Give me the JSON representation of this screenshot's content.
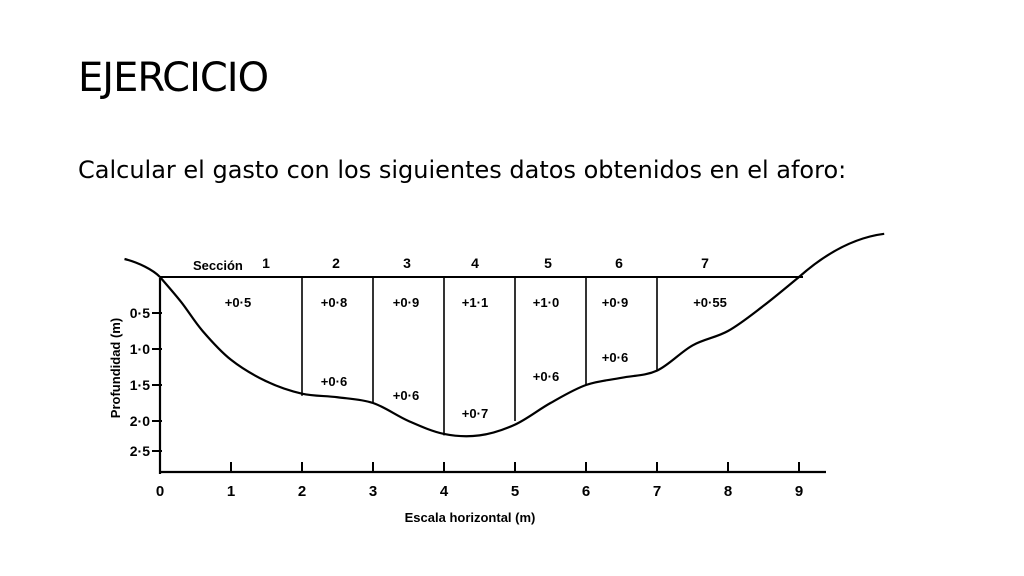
{
  "slide": {
    "title": "EJERCICIO",
    "body": "Calcular el gasto con los siguientes datos obtenidos en el aforo:"
  },
  "diagram": {
    "section_label_prefix": "Sección",
    "sections": [
      {
        "label": "1",
        "top_velocity": "+0·5",
        "bottom_velocity": ""
      },
      {
        "label": "2",
        "top_velocity": "+0·8",
        "bottom_velocity": "+0·6"
      },
      {
        "label": "3",
        "top_velocity": "+0·9",
        "bottom_velocity": "+0·6"
      },
      {
        "label": "4",
        "top_velocity": "+1·1",
        "bottom_velocity": "+0·7"
      },
      {
        "label": "5",
        "top_velocity": "+1·0",
        "bottom_velocity": "+0·6"
      },
      {
        "label": "6",
        "top_velocity": "+0·9",
        "bottom_velocity": "+0·6"
      },
      {
        "label": "7",
        "top_velocity": "+0·55",
        "bottom_velocity": ""
      }
    ],
    "y_axis_label": "Profundidad (m)",
    "y_ticks": [
      "0·5",
      "1·0",
      "1·5",
      "2·0",
      "2·5"
    ],
    "x_axis_label": "Escala horizontal (m)",
    "x_ticks": [
      "0",
      "1",
      "2",
      "3",
      "4",
      "5",
      "6",
      "7",
      "8",
      "9"
    ],
    "vertical_depths_m": [
      {
        "x": 2,
        "depth": 1.65
      },
      {
        "x": 3,
        "depth": 1.75
      },
      {
        "x": 4,
        "depth": 2.2
      },
      {
        "x": 5,
        "depth": 2.0
      },
      {
        "x": 6,
        "depth": 1.5
      },
      {
        "x": 7,
        "depth": 1.3
      }
    ],
    "riverbed_profile_m": [
      {
        "x": 0,
        "depth": 0
      },
      {
        "x": 0.3,
        "depth": 0.35
      },
      {
        "x": 0.6,
        "depth": 0.75
      },
      {
        "x": 1.0,
        "depth": 1.15
      },
      {
        "x": 1.5,
        "depth": 1.45
      },
      {
        "x": 2.0,
        "depth": 1.62
      },
      {
        "x": 2.5,
        "depth": 1.67
      },
      {
        "x": 3.0,
        "depth": 1.75
      },
      {
        "x": 3.5,
        "depth": 2.0
      },
      {
        "x": 4.0,
        "depth": 2.18
      },
      {
        "x": 4.5,
        "depth": 2.2
      },
      {
        "x": 5.0,
        "depth": 2.05
      },
      {
        "x": 5.5,
        "depth": 1.75
      },
      {
        "x": 6.0,
        "depth": 1.5
      },
      {
        "x": 6.5,
        "depth": 1.4
      },
      {
        "x": 7.0,
        "depth": 1.3
      },
      {
        "x": 7.5,
        "depth": 0.95
      },
      {
        "x": 8.0,
        "depth": 0.75
      },
      {
        "x": 8.5,
        "depth": 0.4
      },
      {
        "x": 9.0,
        "depth": 0
      }
    ],
    "water_surface_m": {
      "x_start": 0,
      "x_end": 9,
      "depth": 0
    }
  }
}
